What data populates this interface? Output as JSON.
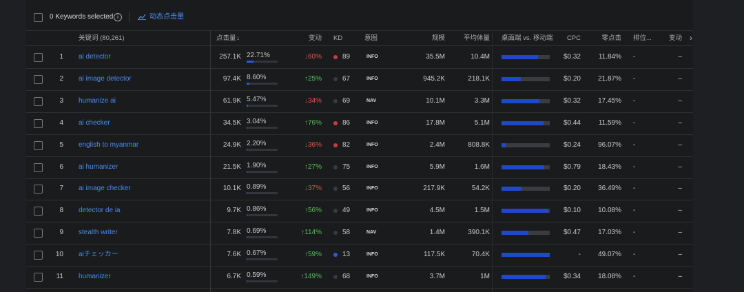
{
  "toolbar": {
    "selected": "0 Keywords selected",
    "action": "动态点击量"
  },
  "table": {
    "columns": [
      "关键词 (80,261)",
      "点击量",
      "变动",
      "KD",
      "意图",
      "规模",
      "平均体量",
      "桌面端 vs. 移动端",
      "CPC",
      "零点击",
      "排位...",
      "变动"
    ],
    "share_range": [
      0,
      100
    ],
    "desktop_range": [
      0,
      100
    ],
    "rows": [
      {
        "index": "1",
        "keyword": "ai detector",
        "clicks": "257.1K",
        "share": {
          "value": 22.71,
          "label": "22.71%"
        },
        "change": "↓60%",
        "change_color": "#e5534b",
        "kd": "89",
        "kd_color": "#d03a3a",
        "intent": "INFO",
        "volume": "35.5M",
        "avg": "10.4M",
        "desktop": 75,
        "cpc": "$0.32",
        "zero": "11.84%",
        "rank": "-",
        "change2": "–"
      },
      {
        "index": "2",
        "keyword": "ai image detector",
        "clicks": "97.4K",
        "share": {
          "value": 8.6,
          "label": "8.60%"
        },
        "change": "↑25%",
        "change_color": "#57c25a",
        "kd": "67",
        "kd_color": "#3a3b3e",
        "intent": "INFO",
        "volume": "945.2K",
        "avg": "218.1K",
        "desktop": 40,
        "cpc": "$0.20",
        "zero": "21.87%",
        "rank": "-",
        "change2": "–"
      },
      {
        "index": "3",
        "keyword": "humanize ai",
        "clicks": "61.9K",
        "share": {
          "value": 5.47,
          "label": "5.47%"
        },
        "change": "↓34%",
        "change_color": "#e5534b",
        "kd": "69",
        "kd_color": "#3a3b3e",
        "intent": "NAV",
        "volume": "10.1M",
        "avg": "3.3M",
        "desktop": 78,
        "cpc": "$0.32",
        "zero": "17.45%",
        "rank": "-",
        "change2": "–"
      },
      {
        "index": "4",
        "keyword": "ai checker",
        "clicks": "34.5K",
        "share": {
          "value": 3.04,
          "label": "3.04%"
        },
        "change": "↑76%",
        "change_color": "#57c25a",
        "kd": "86",
        "kd_color": "#d03a3a",
        "intent": "INFO",
        "volume": "17.8M",
        "avg": "5.1M",
        "desktop": 87,
        "cpc": "$0.44",
        "zero": "11.59%",
        "rank": "-",
        "change2": "–"
      },
      {
        "index": "5",
        "keyword": "english to myanmar",
        "clicks": "24.9K",
        "share": {
          "value": 2.2,
          "label": "2.20%"
        },
        "change": "↓36%",
        "change_color": "#e5534b",
        "kd": "82",
        "kd_color": "#d03a3a",
        "intent": "INFO",
        "volume": "2.4M",
        "avg": "808.8K",
        "desktop": 8,
        "cpc": "$0.24",
        "zero": "96.07%",
        "rank": "-",
        "change2": "–"
      },
      {
        "index": "6",
        "keyword": "ai humanizer",
        "clicks": "21.5K",
        "share": {
          "value": 1.9,
          "label": "1.90%"
        },
        "change": "↑27%",
        "change_color": "#57c25a",
        "kd": "75",
        "kd_color": "#3a3b3e",
        "intent": "INFO",
        "volume": "5.9M",
        "avg": "1.6M",
        "desktop": 88,
        "cpc": "$0.79",
        "zero": "18.43%",
        "rank": "-",
        "change2": "–"
      },
      {
        "index": "7",
        "keyword": "ai image checker",
        "clicks": "10.1K",
        "share": {
          "value": 0.89,
          "label": "0.89%"
        },
        "change": "↓37%",
        "change_color": "#e5534b",
        "kd": "56",
        "kd_color": "#3a3b3e",
        "intent": "INFO",
        "volume": "217.9K",
        "avg": "54.2K",
        "desktop": 42,
        "cpc": "$0.20",
        "zero": "36.49%",
        "rank": "-",
        "change2": "–"
      },
      {
        "index": "8",
        "keyword": "detector de ia",
        "clicks": "9.7K",
        "share": {
          "value": 0.86,
          "label": "0.86%"
        },
        "change": "↑56%",
        "change_color": "#57c25a",
        "kd": "49",
        "kd_color": "#3a3b3e",
        "intent": "INFO",
        "volume": "4.5M",
        "avg": "1.5M",
        "desktop": 97,
        "cpc": "$0.10",
        "zero": "10.08%",
        "rank": "-",
        "change2": "–"
      },
      {
        "index": "9",
        "keyword": "stealth writer",
        "clicks": "7.8K",
        "share": {
          "value": 0.69,
          "label": "0.69%"
        },
        "change": "↑114%",
        "change_color": "#57c25a",
        "kd": "58",
        "kd_color": "#3a3b3e",
        "intent": "NAV",
        "volume": "1.4M",
        "avg": "390.1K",
        "desktop": 55,
        "cpc": "$0.47",
        "zero": "17.03%",
        "rank": "-",
        "change2": "–"
      },
      {
        "index": "10",
        "keyword": "aiチェッカー",
        "clicks": "7.6K",
        "share": {
          "value": 0.67,
          "label": "0.67%"
        },
        "change": "↑59%",
        "change_color": "#57c25a",
        "kd": "13",
        "kd_color": "#2a5bd7",
        "intent": "INFO",
        "volume": "117.5K",
        "avg": "70.4K",
        "desktop": 100,
        "cpc": "-",
        "zero": "49.07%",
        "rank": "-",
        "change2": "–"
      },
      {
        "index": "11",
        "keyword": "humanizer",
        "clicks": "6.7K",
        "share": {
          "value": 0.59,
          "label": "0.59%"
        },
        "change": "↑149%",
        "change_color": "#57c25a",
        "kd": "68",
        "kd_color": "#3a3b3e",
        "intent": "INFO",
        "volume": "3.7M",
        "avg": "1M",
        "desktop": 92,
        "cpc": "$0.34",
        "zero": "18.08%",
        "rank": "-",
        "change2": "–"
      }
    ]
  }
}
